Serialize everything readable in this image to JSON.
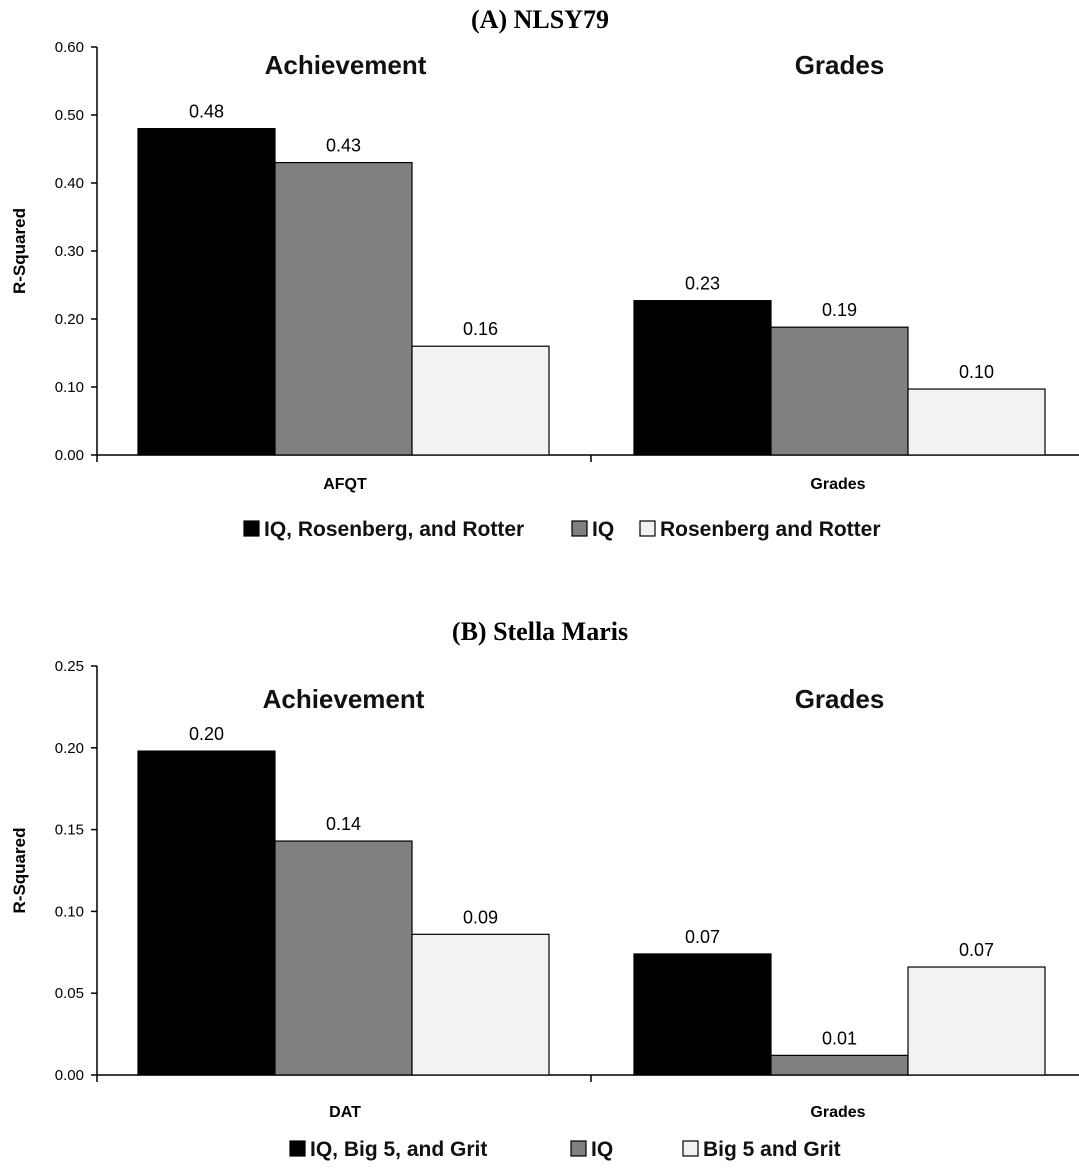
{
  "chart_data": [
    {
      "type": "bar",
      "title": "(A) NLSY79",
      "ylabel": "R-Squared",
      "xlabel": "",
      "ylim": [
        0,
        0.6
      ],
      "yticks": [
        "0.00",
        "0.10",
        "0.20",
        "0.30",
        "0.40",
        "0.50",
        "0.60"
      ],
      "categories": [
        "AFQT",
        "Grades"
      ],
      "group_headings": [
        "Achievement",
        "Grades"
      ],
      "series": [
        {
          "name": "IQ, Rosenberg, and Rotter",
          "color": "#000000",
          "values": [
            0.48,
            0.227
          ],
          "labels": [
            "0.48",
            "0.23"
          ]
        },
        {
          "name": "IQ",
          "color": "#808080",
          "values": [
            0.43,
            0.188
          ],
          "labels": [
            "0.43",
            "0.19"
          ]
        },
        {
          "name": "Rosenberg and Rotter",
          "color": "#f2f2f2",
          "values": [
            0.16,
            0.097
          ],
          "labels": [
            "0.16",
            "0.10"
          ]
        }
      ],
      "legend_position": "bottom",
      "grid": false
    },
    {
      "type": "bar",
      "title": "(B) Stella Maris",
      "ylabel": "R-Squared",
      "xlabel": "",
      "ylim": [
        0,
        0.25
      ],
      "yticks": [
        "0.00",
        "0.05",
        "0.10",
        "0.15",
        "0.20",
        "0.25"
      ],
      "categories": [
        "DAT",
        "Grades"
      ],
      "group_headings": [
        "Achievement",
        "Grades"
      ],
      "series": [
        {
          "name": "IQ, Big 5, and Grit",
          "color": "#000000",
          "values": [
            0.198,
            0.074
          ],
          "labels": [
            "0.20",
            "0.07"
          ]
        },
        {
          "name": "IQ",
          "color": "#808080",
          "values": [
            0.143,
            0.012
          ],
          "labels": [
            "0.14",
            "0.01"
          ]
        },
        {
          "name": "Big 5 and Grit",
          "color": "#f2f2f2",
          "values": [
            0.086,
            0.066
          ],
          "labels": [
            "0.09",
            "0.07"
          ]
        }
      ],
      "legend_position": "bottom",
      "grid": false
    }
  ]
}
